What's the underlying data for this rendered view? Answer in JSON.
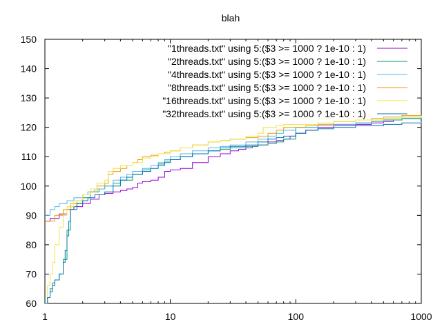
{
  "chart_data": {
    "type": "line",
    "title": "blah",
    "xlabel": "",
    "ylabel": "",
    "x_scale": "log",
    "xlim": [
      1,
      1000
    ],
    "ylim": [
      60,
      150
    ],
    "x_ticks": [
      1,
      10,
      100,
      1000
    ],
    "x_tick_labels": [
      "1",
      "10",
      "100",
      "1000"
    ],
    "y_ticks": [
      60,
      70,
      80,
      90,
      100,
      110,
      120,
      130,
      140,
      150
    ],
    "y_tick_labels": [
      "60",
      "70",
      "80",
      "90",
      "100",
      "110",
      "120",
      "130",
      "140",
      "150"
    ],
    "grid": false,
    "legend_position": "top-right",
    "series": [
      {
        "name": "\"1threads.txt\" using 5:($3 >= 1000 ? 1e-10 : 1)",
        "color": "#9400d3",
        "x": [
          1,
          1.1,
          1.3,
          1.5,
          1.7,
          2,
          2.3,
          2.7,
          3,
          3.5,
          4,
          4.5,
          5,
          5.5,
          6,
          7,
          8,
          9,
          10,
          12,
          15,
          20,
          25,
          30,
          35,
          40,
          45,
          50,
          60,
          70,
          80,
          90,
          100,
          120,
          150,
          200,
          300,
          400,
          500,
          600,
          700,
          800,
          1000
        ],
        "values": [
          88,
          89,
          90.5,
          92,
          93,
          94,
          95.5,
          97,
          97.5,
          98,
          98.5,
          99,
          99.5,
          101,
          101.5,
          102,
          103,
          105,
          105.5,
          106,
          108,
          110,
          111,
          112,
          112.5,
          113,
          113.5,
          114,
          115,
          115.5,
          116,
          117,
          118,
          119,
          120,
          120.5,
          121,
          121.5,
          122,
          122.5,
          123,
          123,
          123
        ]
      },
      {
        "name": "\"2threads.txt\" using 5:($3 >= 1000 ? 1e-10 : 1)",
        "color": "#009e73",
        "x": [
          1,
          1.05,
          1.1,
          1.15,
          1.2,
          1.3,
          1.4,
          1.5,
          1.6,
          1.8,
          2,
          2.3,
          2.7,
          3,
          3.5,
          4,
          5,
          6,
          7,
          8,
          9,
          10,
          12,
          15,
          20,
          25,
          30,
          40,
          50,
          60,
          70,
          80,
          100,
          120,
          150,
          200,
          300,
          400,
          500,
          700,
          1000
        ],
        "values": [
          60,
          62,
          65,
          67,
          68,
          70,
          75,
          85,
          93,
          94,
          96,
          98,
          99,
          100,
          101,
          102,
          104,
          105.5,
          107,
          107.5,
          108.5,
          109,
          110,
          111,
          112,
          112.5,
          113,
          113.5,
          114,
          114.5,
          115,
          116,
          120,
          120,
          120.5,
          121,
          121.5,
          122,
          122.5,
          123,
          123.5
        ]
      },
      {
        "name": "\"4threads.txt\" using 5:($3 >= 1000 ? 1e-10 : 1)",
        "color": "#56b4e9",
        "x": [
          1,
          1.1,
          1.2,
          1.3,
          1.5,
          1.7,
          2,
          2.2,
          2.5,
          3,
          3.5,
          4,
          4.5,
          5,
          6,
          7,
          8,
          9,
          10,
          12,
          15,
          20,
          25,
          30,
          40,
          50,
          60,
          70,
          80,
          100,
          120,
          150,
          200,
          300,
          400,
          500,
          700,
          1000
        ],
        "values": [
          90,
          92,
          93,
          94,
          95,
          96,
          97,
          98,
          99,
          100,
          102,
          103,
          104,
          105,
          106,
          107,
          108,
          109,
          110,
          111,
          112,
          113,
          113.5,
          114,
          115,
          116,
          117,
          118,
          119,
          120,
          120,
          120.5,
          121,
          121.5,
          122,
          123,
          123.5,
          124
        ]
      },
      {
        "name": "\"8threads.txt\" using 5:($3 >= 1000 ? 1e-10 : 1)",
        "color": "#e69f00",
        "x": [
          1,
          1.2,
          1.4,
          1.6,
          1.8,
          2,
          2.3,
          2.6,
          3,
          3.2,
          3.5,
          4,
          4.5,
          5,
          5.5,
          6,
          7,
          8,
          9,
          10,
          12,
          15,
          20,
          25,
          30,
          40,
          50,
          60,
          70,
          80,
          100,
          120,
          150,
          200,
          300,
          400,
          500,
          700,
          1000
        ],
        "values": [
          88,
          90,
          92,
          94,
          95,
          97,
          98,
          100,
          101,
          104,
          105,
          106,
          107,
          108,
          109,
          110,
          110.5,
          111,
          111.5,
          112,
          113,
          114,
          115,
          115.5,
          116,
          116.5,
          117,
          118,
          119,
          120,
          120,
          120.5,
          121,
          122,
          122.5,
          123,
          123.5,
          124,
          124
        ]
      },
      {
        "name": "\"16threads.txt\" using 5:($3 >= 1000 ? 1e-10 : 1)",
        "color": "#f0e442",
        "x": [
          1,
          1.05,
          1.1,
          1.15,
          1.2,
          1.3,
          1.4,
          1.5,
          1.7,
          2,
          2.3,
          2.6,
          3,
          3.2,
          3.5,
          4,
          5,
          6,
          7,
          8,
          10,
          12,
          15,
          20,
          25,
          30,
          40,
          50,
          55,
          60,
          70,
          80,
          100,
          150,
          200,
          300,
          500,
          700,
          1000
        ],
        "values": [
          60,
          66,
          70,
          74,
          80,
          86,
          90,
          93,
          95,
          97,
          99,
          101,
          102,
          105,
          106,
          107,
          108,
          109.5,
          110,
          111,
          112,
          113,
          114,
          115,
          115.5,
          116,
          117,
          118,
          120,
          120,
          120.5,
          121,
          121,
          121.5,
          122,
          122.5,
          123,
          123.5,
          124
        ]
      },
      {
        "name": "\"32threads.txt\" using 5:($3 >= 1000 ? 1e-10 : 1)",
        "color": "#0072b2",
        "x": [
          1,
          1.05,
          1.1,
          1.15,
          1.2,
          1.3,
          1.4,
          1.45,
          1.5,
          1.55,
          1.6,
          1.8,
          2,
          2.2,
          2.5,
          3,
          3.5,
          4,
          4.5,
          5,
          6,
          7,
          8,
          9,
          10,
          12,
          15,
          20,
          25,
          30,
          40,
          50,
          60,
          70,
          80,
          100,
          120,
          150,
          200,
          300,
          500,
          700,
          1000
        ],
        "values": [
          60,
          62,
          64,
          66,
          68,
          70,
          74,
          78,
          83,
          88,
          92,
          94,
          95,
          96,
          97,
          98,
          100,
          102,
          103,
          104,
          105,
          106,
          107,
          108,
          109,
          110,
          111,
          112,
          113,
          113.5,
          114,
          115,
          116,
          116.5,
          117,
          118,
          119,
          119.5,
          120,
          120.5,
          121,
          121.5,
          122
        ]
      }
    ]
  }
}
